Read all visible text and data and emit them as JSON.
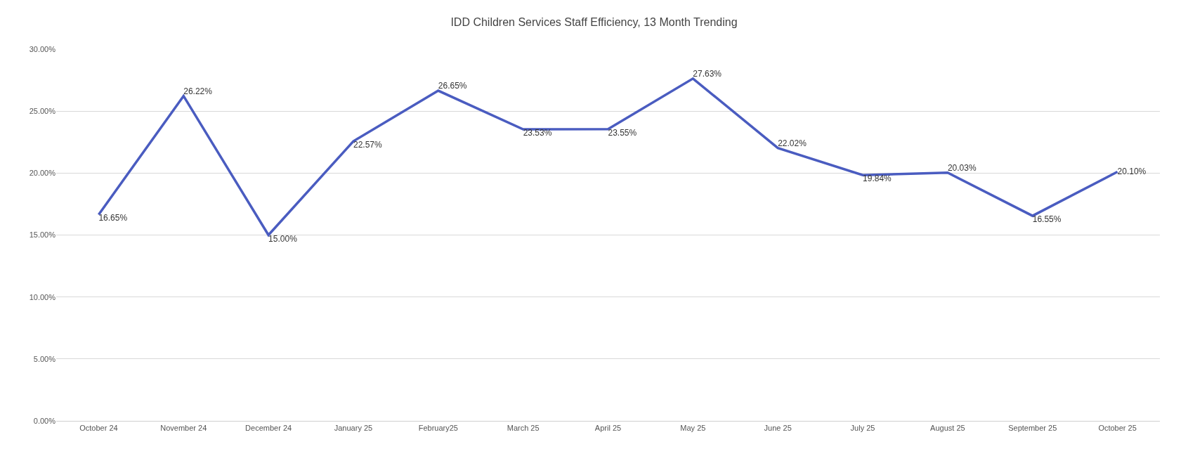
{
  "chart_data": {
    "type": "line",
    "title": "IDD Children Services Staff Efficiency, 13 Month Trending",
    "categories": [
      "October 24",
      "November 24",
      "December 24",
      "January 25",
      "February25",
      "March 25",
      "April 25",
      "May 25",
      "June 25",
      "July 25",
      "August 25",
      "September 25",
      "October 25"
    ],
    "series": [
      {
        "color": "#4a5cc0",
        "values": [
          16.65,
          26.22,
          15.0,
          22.57,
          26.65,
          23.53,
          23.55,
          27.63,
          22.02,
          19.84,
          20.03,
          16.55,
          20.1
        ],
        "value_labels": [
          "16.65%",
          "26.22%",
          "15.00%",
          "22.57%",
          "26.65%",
          "23.53%",
          "23.55%",
          "27.63%",
          "22.02%",
          "19.84%",
          "20.03%",
          "16.55%",
          "20.10%"
        ]
      }
    ],
    "ylim": [
      0,
      30
    ],
    "yticks": [
      {
        "value": 0,
        "label": "0.00%"
      },
      {
        "value": 5,
        "label": "5.00%"
      },
      {
        "value": 10,
        "label": "10.00%"
      },
      {
        "value": 15,
        "label": "15.00%"
      },
      {
        "value": 20,
        "label": "20.00%"
      },
      {
        "value": 25,
        "label": "25.00%"
      },
      {
        "value": 30,
        "label": "30.00%"
      }
    ],
    "grid": "y",
    "marker": "none",
    "line_style": "solid"
  }
}
